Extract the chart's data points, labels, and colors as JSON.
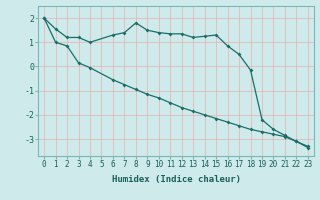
{
  "xlabel": "Humidex (Indice chaleur)",
  "background_color": "#ceeaea",
  "line_color": "#1a6e6a",
  "grid_color": "#ffffff",
  "xlim": [
    -0.5,
    23.5
  ],
  "ylim": [
    -3.7,
    2.5
  ],
  "yticks": [
    -3,
    -2,
    -1,
    0,
    1,
    2
  ],
  "line1_x": [
    0,
    1,
    2,
    3,
    4,
    6,
    7,
    8,
    9,
    10,
    11,
    12,
    13,
    14,
    15,
    16,
    17,
    18,
    19,
    20,
    21,
    22,
    23
  ],
  "line1_y": [
    2.0,
    1.55,
    1.2,
    1.2,
    1.0,
    1.3,
    1.4,
    1.8,
    1.5,
    1.4,
    1.35,
    1.35,
    1.2,
    1.25,
    1.3,
    0.85,
    0.5,
    -0.15,
    -2.2,
    -2.6,
    -2.85,
    -3.1,
    -3.3
  ],
  "line2_x": [
    0,
    1,
    2,
    3,
    4,
    6,
    7,
    8,
    9,
    10,
    11,
    12,
    13,
    14,
    15,
    16,
    17,
    18,
    19,
    20,
    21,
    22,
    23
  ],
  "line2_y": [
    2.0,
    1.0,
    0.85,
    0.15,
    -0.05,
    -0.55,
    -0.75,
    -0.95,
    -1.15,
    -1.3,
    -1.5,
    -1.7,
    -1.85,
    -2.0,
    -2.15,
    -2.3,
    -2.45,
    -2.6,
    -2.7,
    -2.8,
    -2.9,
    -3.1,
    -3.35
  ],
  "xlabel_fontsize": 6.5,
  "tick_fontsize": 5.5,
  "ytick_fontsize": 6.0
}
